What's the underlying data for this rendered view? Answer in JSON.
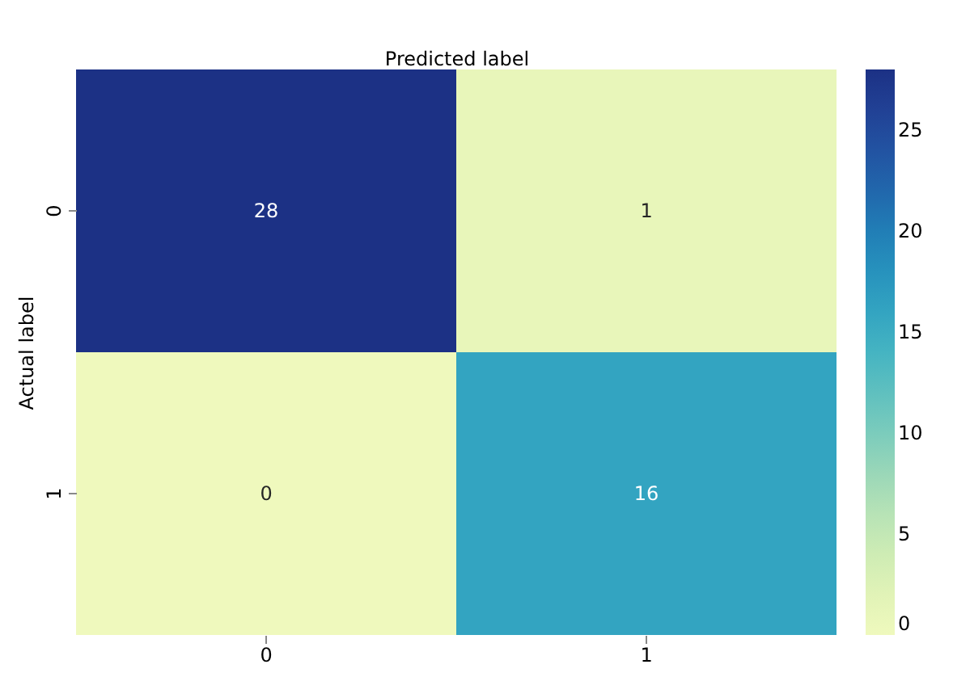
{
  "chart_data": {
    "type": "heatmap",
    "xlabel": "Predicted label",
    "ylabel": "Actual label",
    "categories": [
      "0",
      "1"
    ],
    "y_categories": [
      "0",
      "1"
    ],
    "cells": [
      [
        28,
        1
      ],
      [
        0,
        16
      ]
    ],
    "data_labels": true,
    "clim": [
      0,
      28
    ],
    "cticks": [
      0,
      5,
      10,
      15,
      20,
      25
    ]
  }
}
